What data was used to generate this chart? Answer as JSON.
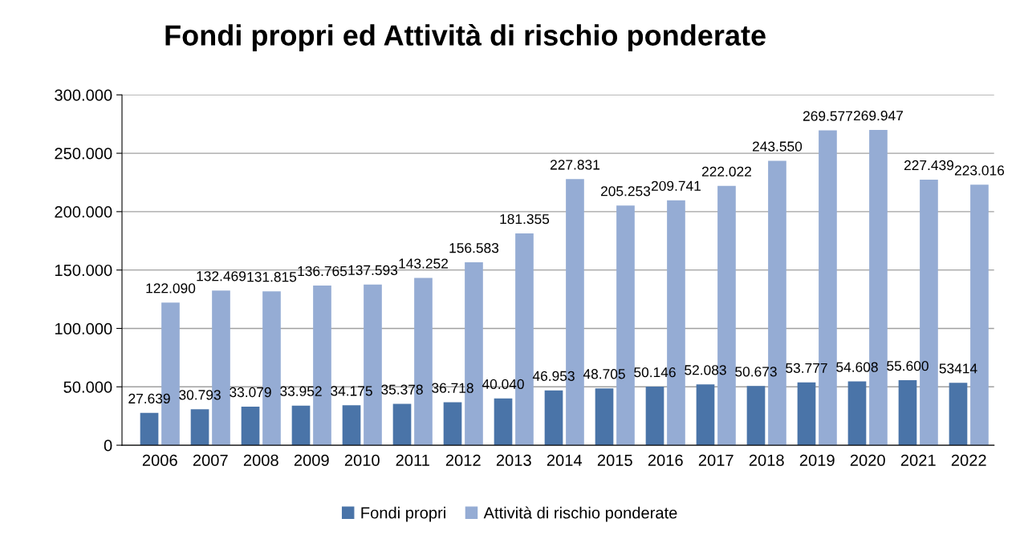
{
  "chart_data": {
    "type": "bar",
    "title": "Fondi propri ed Attività di rischio ponderate",
    "categories": [
      "2006",
      "2007",
      "2008",
      "2009",
      "2010",
      "2011",
      "2012",
      "2013",
      "2014",
      "2015",
      "2016",
      "2017",
      "2018",
      "2019",
      "2020",
      "2021",
      "2022"
    ],
    "series": [
      {
        "name": "Fondi propri",
        "color": "#4a74a8",
        "values": [
          27639,
          30793,
          33079,
          33952,
          34175,
          35378,
          36718,
          40040,
          46953,
          48705,
          50146,
          52083,
          50673,
          53777,
          54608,
          55600,
          53414
        ],
        "value_labels": [
          "27.639",
          "30.793",
          "33.079",
          "33.952",
          "34.175",
          "35.378",
          "36.718",
          "40.040",
          "46.953",
          "48.705",
          "50.146",
          "52.083",
          "50.673",
          "53.777",
          "54.608",
          "55.600",
          "53414"
        ]
      },
      {
        "name": "Attività di rischio ponderate",
        "color": "#95acd4",
        "values": [
          122090,
          132469,
          131815,
          136765,
          137593,
          143252,
          156583,
          181355,
          227831,
          205253,
          209741,
          222022,
          243550,
          269577,
          269947,
          227439,
          223016
        ],
        "value_labels": [
          "122.090",
          "132.469",
          "131.815",
          "136.765",
          "137.593",
          "143.252",
          "156.583",
          "181.355",
          "227.831",
          "205.253",
          "209.741",
          "222.022",
          "243.550",
          "269.577",
          "269.947",
          "227.439",
          "223.016"
        ]
      }
    ],
    "ylim": [
      0,
      300000
    ],
    "yticks": [
      0,
      {
        "value": 50000,
        "label": "50.000"
      },
      {
        "value": 100000,
        "label": "100.000"
      },
      {
        "value": 150000,
        "label": "150.000"
      },
      {
        "value": 200000,
        "label": "200.000"
      },
      {
        "value": 250000,
        "label": "250.000"
      },
      {
        "value": 300000,
        "label": "300.000"
      }
    ],
    "grid": "y",
    "legend": "bottom"
  }
}
